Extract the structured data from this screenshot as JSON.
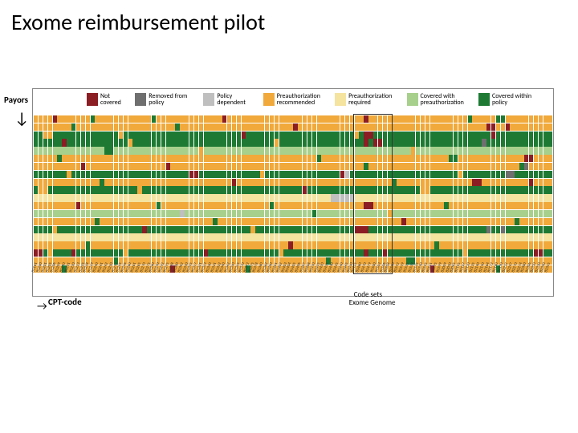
{
  "title": "Exome reimbursement pilot",
  "chart": {
    "type": "heatmap",
    "y_label": "Payors",
    "x_label": "CPT-code",
    "legend": [
      {
        "label": "Not covered",
        "color": "#8b1e24"
      },
      {
        "label": "Removed from policy",
        "color": "#6f6f6f"
      },
      {
        "label": "Policy dependent",
        "color": "#bfbfbf"
      },
      {
        "label": "Preauthorization recommended",
        "color": "#f0a93a"
      },
      {
        "label": "Preauthorization required",
        "color": "#f5e3a0"
      },
      {
        "label": "Covered with preauthorization",
        "color": "#a8d08d"
      },
      {
        "label": "Covered within policy",
        "color": "#1e7a33"
      }
    ],
    "background_color": "#ffffff",
    "border_color": "#888888",
    "cell_gap": 0.5,
    "rows": 20,
    "cols": 110,
    "row_category_index": [
      3,
      3,
      6,
      6,
      5,
      3,
      3,
      6,
      3,
      6,
      4,
      3,
      5,
      3,
      6,
      4,
      3,
      6,
      3,
      3
    ],
    "override_points": [
      {
        "r": 0,
        "c": 4,
        "v": 0
      },
      {
        "r": 0,
        "c": 12,
        "v": 6
      },
      {
        "r": 0,
        "c": 25,
        "v": 6
      },
      {
        "r": 0,
        "c": 40,
        "v": 0
      },
      {
        "r": 0,
        "c": 70,
        "v": 0
      },
      {
        "r": 0,
        "c": 92,
        "v": 6
      },
      {
        "r": 1,
        "c": 8,
        "v": 6
      },
      {
        "r": 1,
        "c": 30,
        "v": 6
      },
      {
        "r": 1,
        "c": 55,
        "v": 0
      },
      {
        "r": 1,
        "c": 100,
        "v": 0
      },
      {
        "r": 2,
        "c": 2,
        "v": 3
      },
      {
        "r": 2,
        "c": 3,
        "v": 3
      },
      {
        "r": 2,
        "c": 18,
        "v": 3
      },
      {
        "r": 2,
        "c": 44,
        "v": 0
      },
      {
        "r": 2,
        "c": 68,
        "v": 3
      },
      {
        "r": 2,
        "c": 97,
        "v": 0
      },
      {
        "r": 3,
        "c": 6,
        "v": 0
      },
      {
        "r": 3,
        "c": 20,
        "v": 3
      },
      {
        "r": 3,
        "c": 51,
        "v": 3
      },
      {
        "r": 3,
        "c": 72,
        "v": 0
      },
      {
        "r": 3,
        "c": 73,
        "v": 0
      },
      {
        "r": 3,
        "c": 95,
        "v": 1
      },
      {
        "r": 4,
        "c": 15,
        "v": 6
      },
      {
        "r": 4,
        "c": 16,
        "v": 6
      },
      {
        "r": 4,
        "c": 35,
        "v": 3
      },
      {
        "r": 4,
        "c": 80,
        "v": 3
      },
      {
        "r": 5,
        "c": 5,
        "v": 6
      },
      {
        "r": 5,
        "c": 60,
        "v": 6
      },
      {
        "r": 5,
        "c": 88,
        "v": 6
      },
      {
        "r": 5,
        "c": 89,
        "v": 6
      },
      {
        "r": 6,
        "c": 10,
        "v": 0
      },
      {
        "r": 6,
        "c": 28,
        "v": 0
      },
      {
        "r": 6,
        "c": 70,
        "v": 6
      },
      {
        "r": 6,
        "c": 103,
        "v": 6
      },
      {
        "r": 7,
        "c": 7,
        "v": 3
      },
      {
        "r": 7,
        "c": 33,
        "v": 0
      },
      {
        "r": 7,
        "c": 34,
        "v": 0
      },
      {
        "r": 7,
        "c": 48,
        "v": 3
      },
      {
        "r": 7,
        "c": 65,
        "v": 0
      },
      {
        "r": 7,
        "c": 66,
        "v": 2
      },
      {
        "r": 7,
        "c": 90,
        "v": 3
      },
      {
        "r": 8,
        "c": 14,
        "v": 6
      },
      {
        "r": 8,
        "c": 42,
        "v": 0
      },
      {
        "r": 8,
        "c": 76,
        "v": 6
      },
      {
        "r": 8,
        "c": 93,
        "v": 0
      },
      {
        "r": 8,
        "c": 94,
        "v": 0
      },
      {
        "r": 9,
        "c": 1,
        "v": 3
      },
      {
        "r": 9,
        "c": 2,
        "v": 3
      },
      {
        "r": 9,
        "c": 22,
        "v": 3
      },
      {
        "r": 9,
        "c": 57,
        "v": 0
      },
      {
        "r": 9,
        "c": 82,
        "v": 3
      },
      {
        "r": 9,
        "c": 83,
        "v": 3
      },
      {
        "r": 10,
        "c": 63,
        "v": 2
      },
      {
        "r": 10,
        "c": 64,
        "v": 2
      },
      {
        "r": 10,
        "c": 65,
        "v": 2
      },
      {
        "r": 10,
        "c": 66,
        "v": 2
      },
      {
        "r": 10,
        "c": 67,
        "v": 2
      },
      {
        "r": 11,
        "c": 9,
        "v": 0
      },
      {
        "r": 11,
        "c": 26,
        "v": 6
      },
      {
        "r": 11,
        "c": 50,
        "v": 6
      },
      {
        "r": 11,
        "c": 71,
        "v": 0
      },
      {
        "r": 11,
        "c": 87,
        "v": 6
      },
      {
        "r": 12,
        "c": 31,
        "v": 2
      },
      {
        "r": 12,
        "c": 59,
        "v": 6
      },
      {
        "r": 12,
        "c": 75,
        "v": 3
      },
      {
        "r": 13,
        "c": 13,
        "v": 6
      },
      {
        "r": 13,
        "c": 38,
        "v": 6
      },
      {
        "r": 13,
        "c": 78,
        "v": 0
      },
      {
        "r": 13,
        "c": 102,
        "v": 6
      },
      {
        "r": 14,
        "c": 4,
        "v": 3
      },
      {
        "r": 14,
        "c": 23,
        "v": 0
      },
      {
        "r": 14,
        "c": 46,
        "v": 3
      },
      {
        "r": 14,
        "c": 68,
        "v": 0
      },
      {
        "r": 14,
        "c": 69,
        "v": 0
      },
      {
        "r": 14,
        "c": 70,
        "v": 0
      },
      {
        "r": 14,
        "c": 99,
        "v": 1
      },
      {
        "r": 16,
        "c": 11,
        "v": 6
      },
      {
        "r": 16,
        "c": 54,
        "v": 0
      },
      {
        "r": 16,
        "c": 85,
        "v": 6
      },
      {
        "r": 17,
        "c": 0,
        "v": 0
      },
      {
        "r": 17,
        "c": 1,
        "v": 0
      },
      {
        "r": 17,
        "c": 3,
        "v": 3
      },
      {
        "r": 17,
        "c": 8,
        "v": 0
      },
      {
        "r": 17,
        "c": 19,
        "v": 3
      },
      {
        "r": 17,
        "c": 36,
        "v": 0
      },
      {
        "r": 17,
        "c": 52,
        "v": 3
      },
      {
        "r": 17,
        "c": 74,
        "v": 0
      },
      {
        "r": 17,
        "c": 91,
        "v": 3
      },
      {
        "r": 17,
        "c": 106,
        "v": 0
      },
      {
        "r": 17,
        "c": 107,
        "v": 0
      },
      {
        "r": 18,
        "c": 17,
        "v": 6
      },
      {
        "r": 18,
        "c": 62,
        "v": 6
      },
      {
        "r": 18,
        "c": 79,
        "v": 6
      },
      {
        "r": 18,
        "c": 80,
        "v": 6
      },
      {
        "r": 19,
        "c": 6,
        "v": 6
      },
      {
        "r": 19,
        "c": 29,
        "v": 0
      },
      {
        "r": 19,
        "c": 45,
        "v": 6
      },
      {
        "r": 19,
        "c": 84,
        "v": 0
      },
      {
        "r": 19,
        "c": 98,
        "v": 6
      },
      {
        "r": 2,
        "c": 70,
        "v": 0
      },
      {
        "r": 2,
        "c": 71,
        "v": 0
      },
      {
        "r": 3,
        "c": 70,
        "v": 0
      },
      {
        "r": 11,
        "c": 70,
        "v": 0
      },
      {
        "r": 17,
        "c": 70,
        "v": 0
      },
      {
        "r": 5,
        "c": 104,
        "v": 0
      },
      {
        "r": 5,
        "c": 105,
        "v": 0
      },
      {
        "r": 6,
        "c": 104,
        "v": 1
      },
      {
        "r": 8,
        "c": 105,
        "v": 0
      },
      {
        "r": 0,
        "c": 98,
        "v": 6
      },
      {
        "r": 0,
        "c": 99,
        "v": 6
      },
      {
        "r": 1,
        "c": 96,
        "v": 0
      },
      {
        "r": 1,
        "c": 97,
        "v": 0
      },
      {
        "r": 7,
        "c": 100,
        "v": 1
      },
      {
        "r": 7,
        "c": 101,
        "v": 1
      },
      {
        "r": 14,
        "c": 96,
        "v": 1
      }
    ],
    "x_codes_sample": [
      "81161",
      "81200",
      "81201",
      "81205",
      "81206",
      "81209",
      "81210",
      "81211",
      "81220",
      "81223",
      "81225",
      "81228",
      "81229",
      "81240",
      "81241",
      "81242",
      "81250",
      "81252",
      "81255",
      "81256",
      "81260",
      "81261",
      "81265",
      "81270",
      "81275",
      "81280",
      "81290",
      "81292",
      "81295",
      "81298",
      "81300",
      "81302",
      "81310",
      "81315",
      "81317",
      "81321",
      "81323",
      "81330",
      "81331",
      "81332",
      "81340",
      "81342",
      "81350",
      "81355",
      "81370",
      "81372",
      "81375",
      "81378",
      "81380",
      "81382",
      "81400",
      "81401",
      "81402",
      "81403",
      "81404",
      "81405",
      "81406",
      "81407",
      "81408",
      "81410",
      "81415",
      "81420",
      "81425",
      "81430",
      "81435",
      "81440",
      "81445",
      "81450",
      "81455",
      "81460",
      "81470",
      "81479",
      "81500",
      "81503",
      "81506",
      "81508",
      "81510",
      "81512",
      "81519",
      "81525",
      "81528",
      "81535",
      "81540",
      "81545",
      "81551",
      "81595",
      "81599",
      "82009",
      "82010",
      "82085",
      "82105",
      "82107",
      "82120",
      "82135",
      "82140",
      "82150",
      "82164",
      "82172",
      "82180",
      "82190",
      "82232",
      "82247",
      "82270",
      "82274",
      "82300",
      "82306",
      "82310",
      "82330",
      "82340",
      "82355"
    ],
    "code_sets": {
      "label": "Code sets",
      "sub_labels": [
        "Exome",
        "Genome"
      ],
      "col_start": 68,
      "col_end": 76
    }
  }
}
